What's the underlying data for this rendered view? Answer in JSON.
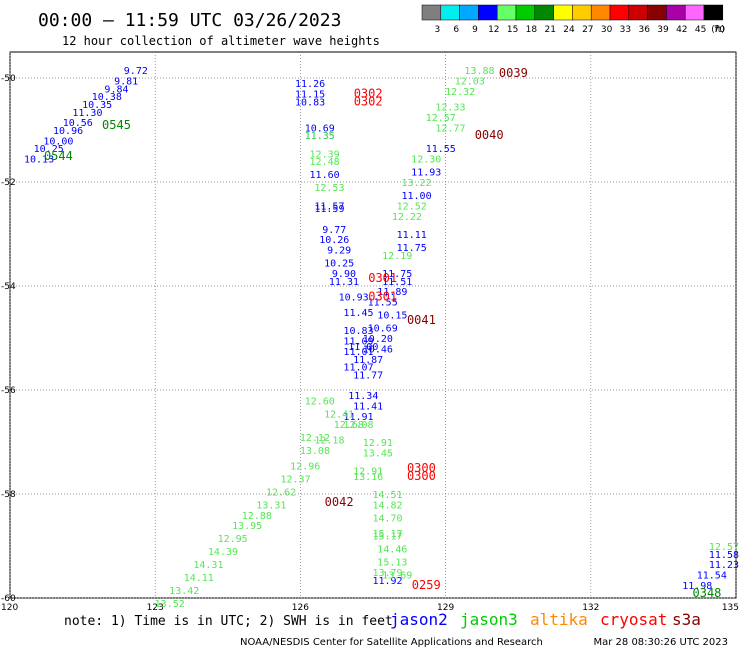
{
  "header": {
    "title": "00:00 – 11:59 UTC 03/26/2023",
    "subtitle": "12 hour collection of altimeter wave heights"
  },
  "color_scale": {
    "unit": "(ft)",
    "bins": [
      {
        "label": "3",
        "color": "#7f7f7f"
      },
      {
        "label": "6",
        "color": "#00eeee"
      },
      {
        "label": "9",
        "color": "#00a8ff"
      },
      {
        "label": "12",
        "color": "#0000ff"
      },
      {
        "label": "15",
        "color": "#66ff66"
      },
      {
        "label": "18",
        "color": "#00cc00"
      },
      {
        "label": "21",
        "color": "#008800"
      },
      {
        "label": "24",
        "color": "#ffff00"
      },
      {
        "label": "27",
        "color": "#ffcc00"
      },
      {
        "label": "30",
        "color": "#ff8800"
      },
      {
        "label": "33",
        "color": "#ff0000"
      },
      {
        "label": "36",
        "color": "#cc0000"
      },
      {
        "label": "39",
        "color": "#880000"
      },
      {
        "label": "42",
        "color": "#aa00aa"
      },
      {
        "label": "45",
        "color": "#ff66ff"
      },
      {
        "label": "70",
        "color": "#000000"
      }
    ]
  },
  "footer": {
    "note": "note: 1) Time is in UTC; 2) SWH is in feet",
    "satellites": [
      {
        "name": "jason2",
        "color": "#0000ff"
      },
      {
        "name": "jason3",
        "color": "#00cc00"
      },
      {
        "name": "altika",
        "color": "#ff8800"
      },
      {
        "name": "cryosat",
        "color": "#ff0000"
      },
      {
        "name": "s3a",
        "color": "#880000"
      }
    ],
    "credit": "NOAA/NESDIS Center for Satellite Applications and Research",
    "timestamp": "Mar 28 08:30:26 UTC 2023"
  },
  "chart_data": {
    "type": "scatter",
    "title": "12 hour collection of altimeter wave heights",
    "xlim": [
      120,
      135
    ],
    "ylim": [
      -60,
      -49.5
    ],
    "x_ticks": [
      {
        "v": 120,
        "label": "120"
      },
      {
        "v": 123,
        "label": "123"
      },
      {
        "v": 126,
        "label": "126"
      },
      {
        "v": 129,
        "label": "129"
      },
      {
        "v": 132,
        "label": "132"
      },
      {
        "v": 135,
        "label": "135"
      }
    ],
    "y_ticks": [
      {
        "v": -50,
        "label": "-50"
      },
      {
        "v": -52,
        "label": "-52"
      },
      {
        "v": -54,
        "label": "-54"
      },
      {
        "v": -56,
        "label": "-56"
      },
      {
        "v": -58,
        "label": "-58"
      },
      {
        "v": -60,
        "label": "-60"
      }
    ],
    "grid": "dotted",
    "series": [
      {
        "name": "jason2",
        "color": "#0000ff",
        "points": [
          [
            120.6,
            -51.55,
            "10.13"
          ],
          [
            120.8,
            -51.35,
            "10.25"
          ],
          [
            121.0,
            -51.2,
            "10.00"
          ],
          [
            121.2,
            -51.0,
            "10.96"
          ],
          [
            121.4,
            -50.85,
            "10.56"
          ],
          [
            121.6,
            -50.65,
            "11.30"
          ],
          [
            121.8,
            -50.5,
            "10.35"
          ],
          [
            122.0,
            -50.35,
            "10.38"
          ],
          [
            122.2,
            -50.2,
            "9.84"
          ],
          [
            122.4,
            -50.05,
            "9.81"
          ],
          [
            122.6,
            -49.85,
            "9.72"
          ],
          [
            126.2,
            -50.1,
            "11.26"
          ],
          [
            126.2,
            -50.3,
            "11.15"
          ],
          [
            126.2,
            -50.45,
            "10.83"
          ],
          [
            126.4,
            -50.95,
            "10.69"
          ],
          [
            126.4,
            -51.1,
            "11.35"
          ],
          [
            126.5,
            -51.85,
            "11.60"
          ],
          [
            126.6,
            -52.45,
            "11.57"
          ],
          [
            126.6,
            -52.5,
            "11.59"
          ],
          [
            126.7,
            -52.9,
            "9.77"
          ],
          [
            126.7,
            -53.1,
            "10.26"
          ],
          [
            126.8,
            -53.3,
            "9.29"
          ],
          [
            126.8,
            -53.55,
            "10.25"
          ],
          [
            126.9,
            -53.75,
            "9.90"
          ],
          [
            126.9,
            -53.9,
            "11.31"
          ],
          [
            127.1,
            -54.2,
            "10.93"
          ],
          [
            127.2,
            -54.5,
            "11.45"
          ],
          [
            127.2,
            -54.85,
            "10.83"
          ],
          [
            127.2,
            -55.05,
            "11.09"
          ],
          [
            127.3,
            -55.15,
            "11.00"
          ],
          [
            127.2,
            -55.25,
            "11.01"
          ],
          [
            127.4,
            -55.4,
            "11.87"
          ],
          [
            127.2,
            -55.55,
            "11.07"
          ],
          [
            127.4,
            -55.7,
            "11.77"
          ],
          [
            127.3,
            -56.1,
            "11.34"
          ],
          [
            127.4,
            -56.3,
            "11.41"
          ],
          [
            127.2,
            -56.5,
            "11.91"
          ],
          [
            128.3,
            -53.0,
            "11.11"
          ],
          [
            128.3,
            -53.25,
            "11.75"
          ],
          [
            128.0,
            -53.75,
            "11.75"
          ],
          [
            128.0,
            -53.9,
            "11.51"
          ],
          [
            127.9,
            -54.1,
            "11.89"
          ],
          [
            127.7,
            -54.3,
            "11.55"
          ],
          [
            127.9,
            -54.55,
            "10.15"
          ],
          [
            127.7,
            -54.8,
            "10.69"
          ],
          [
            127.6,
            -55.0,
            "10.20"
          ],
          [
            127.6,
            -55.2,
            "10.46"
          ],
          [
            128.9,
            -51.35,
            "11.55"
          ],
          [
            128.6,
            -51.8,
            "11.93"
          ],
          [
            128.4,
            -52.25,
            "11.00"
          ],
          [
            127.8,
            -59.65,
            "11.92"
          ],
          [
            134.2,
            -59.75,
            "11.98"
          ],
          [
            134.5,
            -59.55,
            "11.54"
          ],
          [
            134.8,
            -59.35,
            "11.23"
          ],
          [
            135.0,
            -59.15,
            "11.58"
          ]
        ]
      },
      {
        "name": "jason3",
        "color": "#55e655",
        "points": [
          [
            126.4,
            -51.1,
            "11.35"
          ],
          [
            126.5,
            -51.45,
            "12.39"
          ],
          [
            126.5,
            -51.6,
            "12.48"
          ],
          [
            126.6,
            -52.1,
            "12.53"
          ],
          [
            126.4,
            -56.2,
            "12.60"
          ],
          [
            126.8,
            -56.45,
            "12.41"
          ],
          [
            127.0,
            -56.65,
            "12.68"
          ],
          [
            126.6,
            -56.95,
            "12.18"
          ],
          [
            127.2,
            -56.65,
            "12.08"
          ],
          [
            126.3,
            -56.9,
            "12.12"
          ],
          [
            126.3,
            -57.15,
            "13.08"
          ],
          [
            127.6,
            -57.0,
            "12.91"
          ],
          [
            127.6,
            -57.2,
            "13.45"
          ],
          [
            126.1,
            -57.45,
            "12.96"
          ],
          [
            125.9,
            -57.7,
            "12.37"
          ],
          [
            125.6,
            -57.95,
            "12.62"
          ],
          [
            125.4,
            -58.2,
            "13.31"
          ],
          [
            125.1,
            -58.4,
            "12.88"
          ],
          [
            124.9,
            -58.6,
            "13.95"
          ],
          [
            124.6,
            -58.85,
            "12.95"
          ],
          [
            124.4,
            -59.1,
            "14.39"
          ],
          [
            124.1,
            -59.35,
            "14.31"
          ],
          [
            123.9,
            -59.6,
            "14.11"
          ],
          [
            123.6,
            -59.85,
            "13.42"
          ],
          [
            123.3,
            -60.1,
            "13.52"
          ],
          [
            127.4,
            -57.55,
            "12.91"
          ],
          [
            127.4,
            -57.65,
            "13.16"
          ],
          [
            127.8,
            -58.0,
            "14.51"
          ],
          [
            127.8,
            -58.2,
            "14.82"
          ],
          [
            127.8,
            -58.45,
            "14.70"
          ],
          [
            127.8,
            -58.75,
            "15.17"
          ],
          [
            127.8,
            -58.8,
            "15.17"
          ],
          [
            127.9,
            -59.05,
            "14.46"
          ],
          [
            127.9,
            -59.3,
            "15.13"
          ],
          [
            127.8,
            -59.5,
            "13.79"
          ],
          [
            128.0,
            -59.55,
            "13.69"
          ],
          [
            129.7,
            -49.85,
            "13.88"
          ],
          [
            129.5,
            -50.05,
            "12.03"
          ],
          [
            129.3,
            -50.25,
            "12.32"
          ],
          [
            129.1,
            -50.55,
            "12.33"
          ],
          [
            128.9,
            -50.75,
            "12.57"
          ],
          [
            129.1,
            -50.95,
            "12.77"
          ],
          [
            128.6,
            -51.55,
            "12.30"
          ],
          [
            128.4,
            -52.0,
            "13.22"
          ],
          [
            128.3,
            -52.45,
            "12.52"
          ],
          [
            128.2,
            -52.65,
            "12.22"
          ],
          [
            128.0,
            -53.4,
            "12.19"
          ],
          [
            135.0,
            -59.0,
            "12.57"
          ]
        ]
      }
    ],
    "pass_labels": [
      {
        "x": 122.2,
        "y": -50.9,
        "text": "0545",
        "color": "#008800"
      },
      {
        "x": 121.0,
        "y": -51.5,
        "text": "0544",
        "color": "#008800"
      },
      {
        "x": 127.4,
        "y": -50.3,
        "text": "0302",
        "color": "#ff0000"
      },
      {
        "x": 127.4,
        "y": -50.45,
        "text": "0302",
        "color": "#ff0000"
      },
      {
        "x": 130.4,
        "y": -49.9,
        "text": "0039",
        "color": "#880000"
      },
      {
        "x": 129.9,
        "y": -51.1,
        "text": "0040",
        "color": "#880000"
      },
      {
        "x": 127.7,
        "y": -53.85,
        "text": "0301",
        "color": "#ff0000"
      },
      {
        "x": 127.7,
        "y": -54.2,
        "text": "0301",
        "color": "#ff0000"
      },
      {
        "x": 128.5,
        "y": -54.65,
        "text": "0041",
        "color": "#880000"
      },
      {
        "x": 128.5,
        "y": -57.5,
        "text": "0300",
        "color": "#ff0000"
      },
      {
        "x": 128.5,
        "y": -57.65,
        "text": "0300",
        "color": "#ff0000"
      },
      {
        "x": 126.8,
        "y": -58.15,
        "text": "0042",
        "color": "#880000"
      },
      {
        "x": 128.6,
        "y": -59.75,
        "text": "0259",
        "color": "#ff0000"
      },
      {
        "x": 134.4,
        "y": -59.9,
        "text": "0348",
        "color": "#008800"
      }
    ]
  }
}
